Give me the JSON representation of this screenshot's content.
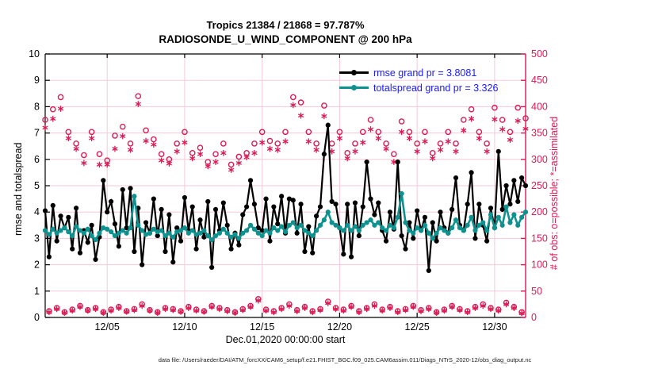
{
  "figure": {
    "title_line1": "Tropics 21384 / 21868 = 97.787%",
    "title_line2": "RADIOSONDE_U_WIND_COMPONENT @ 200 hPa",
    "xlabel": "Dec.01,2020 00:00:00 start",
    "ylabel_left": "rmse and totalspread",
    "ylabel_right": "# of obs: o=possible; *=assimilated",
    "footer": "data file: /Users/raeder/DAI/ATM_forcXX/CAM6_setup/f.e21.FHIST_BGC.f09_025.CAM6assim.011/Diags_NTrS_2020-12/obs_diag_output.nc"
  },
  "legend": {
    "rmse_label": "rmse grand pr = 3.8081",
    "totalspread_label": "totalspread grand pr = 3.326"
  },
  "colors": {
    "rmse": "#000000",
    "totalspread": "#0e9290",
    "obs": "#dc1a54",
    "legend_text": "#1a1aff",
    "grid": "#f5cad7",
    "axis": "#000000"
  },
  "chart_data": {
    "type": "line",
    "title": "Tropics 21384 / 21868 = 97.787% | RADIOSONDE_U_WIND_COMPONENT @ 200 hPa",
    "x_unit": "days since Dec 1, 2020 00:00 UTC",
    "x_step_days": 0.25,
    "n_points": 125,
    "xlim_days": [
      0,
      31
    ],
    "x_ticks": [
      {
        "day": 4,
        "label": "12/05"
      },
      {
        "day": 9,
        "label": "12/10"
      },
      {
        "day": 14,
        "label": "12/15"
      },
      {
        "day": 19,
        "label": "12/20"
      },
      {
        "day": 24,
        "label": "12/25"
      },
      {
        "day": 29,
        "label": "12/30"
      }
    ],
    "ylim_left": [
      0,
      10
    ],
    "yticks_left": [
      0,
      1,
      2,
      3,
      4,
      5,
      6,
      7,
      8,
      9,
      10
    ],
    "ylim_right": [
      0,
      500
    ],
    "yticks_right": [
      0,
      50,
      100,
      150,
      200,
      250,
      300,
      350,
      400,
      450,
      500
    ],
    "grid": true,
    "legend_position": "top-right-inside",
    "grand_mean": {
      "rmse": 3.8081,
      "totalspread": 3.326
    },
    "obs_totals": {
      "assimilated": 21384,
      "possible": 21868,
      "percent": 97.787
    },
    "series": [
      {
        "name": "rmse",
        "axis": "left",
        "marker": "filled-dot",
        "line": true,
        "values": [
          4.05,
          2.3,
          4.25,
          2.9,
          3.85,
          3.4,
          3.8,
          2.6,
          4.15,
          2.45,
          3.3,
          2.85,
          3.5,
          2.2,
          3.05,
          5.2,
          4.0,
          4.4,
          3.55,
          2.7,
          4.85,
          3.4,
          4.9,
          2.5,
          4.15,
          2.0,
          3.6,
          3.2,
          4.5,
          3.1,
          4.1,
          2.5,
          3.9,
          2.1,
          3.4,
          2.9,
          4.55,
          3.3,
          4.2,
          2.6,
          3.7,
          3.05,
          4.4,
          1.9,
          4.1,
          3.3,
          4.35,
          3.5,
          2.6,
          3.2,
          2.75,
          3.9,
          4.2,
          5.2,
          4.3,
          3.4,
          3.3,
          4.5,
          2.9,
          4.2,
          3.55,
          4.6,
          3.2,
          4.5,
          4.45,
          3.2,
          4.3,
          2.5,
          3.45,
          2.45,
          3.85,
          4.2,
          6.2,
          7.3,
          4.4,
          4.3,
          3.4,
          2.4,
          4.3,
          2.3,
          4.35,
          3.1,
          4.2,
          5.9,
          4.5,
          3.9,
          4.35,
          3.3,
          2.9,
          4.0,
          3.35,
          5.9,
          3.1,
          2.6,
          3.6,
          3.0,
          4.05,
          3.3,
          3.8,
          1.78,
          3.6,
          2.9,
          4.0,
          3.4,
          3.2,
          4.1,
          5.3,
          3.5,
          3.3,
          4.3,
          5.5,
          3.0,
          4.3,
          3.5,
          2.9,
          4.15,
          3.4,
          6.3,
          4.1,
          5.0,
          4.3,
          5.2,
          4.4,
          5.3,
          5.0
        ]
      },
      {
        "name": "totalspread",
        "axis": "left",
        "marker": "filled-dot",
        "line": true,
        "values": [
          3.3,
          3.15,
          3.35,
          3.2,
          3.3,
          3.4,
          3.25,
          3.1,
          3.45,
          3.3,
          3.2,
          3.35,
          3.1,
          2.95,
          3.2,
          3.4,
          3.35,
          3.25,
          3.1,
          3.2,
          3.3,
          3.2,
          3.4,
          4.6,
          3.5,
          3.3,
          3.15,
          3.2,
          3.35,
          3.25,
          3.3,
          3.1,
          3.2,
          3.05,
          3.25,
          3.3,
          3.4,
          3.2,
          3.3,
          3.15,
          3.2,
          3.3,
          3.1,
          2.95,
          3.1,
          3.2,
          3.35,
          3.2,
          3.05,
          3.15,
          3.0,
          3.2,
          3.3,
          3.5,
          3.35,
          3.2,
          3.1,
          3.3,
          3.2,
          3.4,
          3.3,
          3.45,
          3.25,
          3.5,
          3.6,
          3.4,
          3.5,
          3.3,
          3.2,
          3.1,
          3.3,
          3.5,
          3.7,
          4.0,
          3.6,
          3.5,
          3.4,
          3.3,
          3.5,
          3.3,
          3.45,
          3.3,
          3.5,
          3.6,
          3.7,
          3.5,
          3.6,
          3.4,
          3.3,
          3.5,
          3.4,
          3.8,
          4.7,
          3.6,
          3.3,
          3.2,
          3.4,
          3.3,
          3.5,
          3.2,
          3.0,
          3.2,
          3.4,
          3.3,
          3.2,
          3.4,
          3.7,
          3.4,
          3.3,
          3.5,
          3.8,
          3.3,
          3.5,
          3.6,
          3.3,
          3.9,
          3.4,
          3.8,
          3.5,
          4.2,
          3.6,
          3.9,
          3.5,
          3.8,
          4.0
        ]
      },
      {
        "name": "possible",
        "axis": "right",
        "marker": "open-circle",
        "line": false,
        "note": "6-hourly, alternating 00Z/12Z (high) and 06Z/18Z (low); interleave high[k],low[k]",
        "values_high_00z_12z": [
          375,
          395,
          418,
          352,
          330,
          308,
          352,
          310,
          298,
          345,
          362,
          330,
          420,
          355,
          338,
          310,
          300,
          330,
          352,
          312,
          322,
          295,
          310,
          330,
          290,
          305,
          312,
          330,
          352,
          335,
          330,
          352,
          418,
          408,
          352,
          330,
          402,
          330,
          352,
          312,
          330,
          352,
          375,
          352,
          330,
          310,
          372,
          352,
          330,
          352,
          312,
          330,
          352,
          330,
          375,
          395,
          352,
          330,
          398,
          375,
          352,
          398,
          378
        ],
        "values_low_06z_18z": [
          12,
          18,
          10,
          15,
          22,
          14,
          18,
          10,
          15,
          20,
          12,
          16,
          25,
          14,
          10,
          18,
          16,
          12,
          20,
          15,
          12,
          22,
          18,
          14,
          10,
          16,
          22,
          35,
          15,
          12,
          18,
          25,
          14,
          20,
          12,
          16,
          30,
          18,
          15,
          22,
          12,
          18,
          25,
          15,
          20,
          12,
          16,
          22,
          14,
          18,
          10,
          15,
          22,
          16,
          12,
          20,
          25,
          18,
          15,
          28,
          20,
          10
        ]
      },
      {
        "name": "assimilated",
        "axis": "right",
        "marker": "asterisk",
        "line": false,
        "note": "6-hourly, alternating 00Z/12Z (high) and 06Z/18Z (low); interleave high[k],low[k]",
        "values_high_00z_12z": [
          360,
          377,
          396,
          340,
          320,
          293,
          340,
          290,
          290,
          320,
          344,
          318,
          405,
          335,
          328,
          298,
          292,
          315,
          332,
          302,
          310,
          287,
          295,
          312,
          280,
          293,
          304,
          312,
          332,
          320,
          318,
          334,
          403,
          383,
          334,
          318,
          382,
          315,
          340,
          302,
          315,
          332,
          357,
          340,
          320,
          295,
          352,
          340,
          315,
          334,
          302,
          318,
          334,
          315,
          355,
          377,
          340,
          315,
          376,
          357,
          337,
          373,
          358
        ],
        "values_low_06z_18z": [
          10,
          16,
          9,
          13,
          20,
          13,
          16,
          9,
          13,
          18,
          11,
          14,
          22,
          13,
          9,
          16,
          14,
          11,
          18,
          13,
          11,
          20,
          16,
          12,
          9,
          14,
          20,
          32,
          13,
          10,
          16,
          22,
          12,
          18,
          10,
          14,
          27,
          16,
          13,
          20,
          10,
          16,
          22,
          13,
          18,
          10,
          14,
          20,
          12,
          16,
          9,
          13,
          20,
          14,
          10,
          18,
          22,
          16,
          13,
          25,
          18,
          8
        ]
      }
    ]
  }
}
